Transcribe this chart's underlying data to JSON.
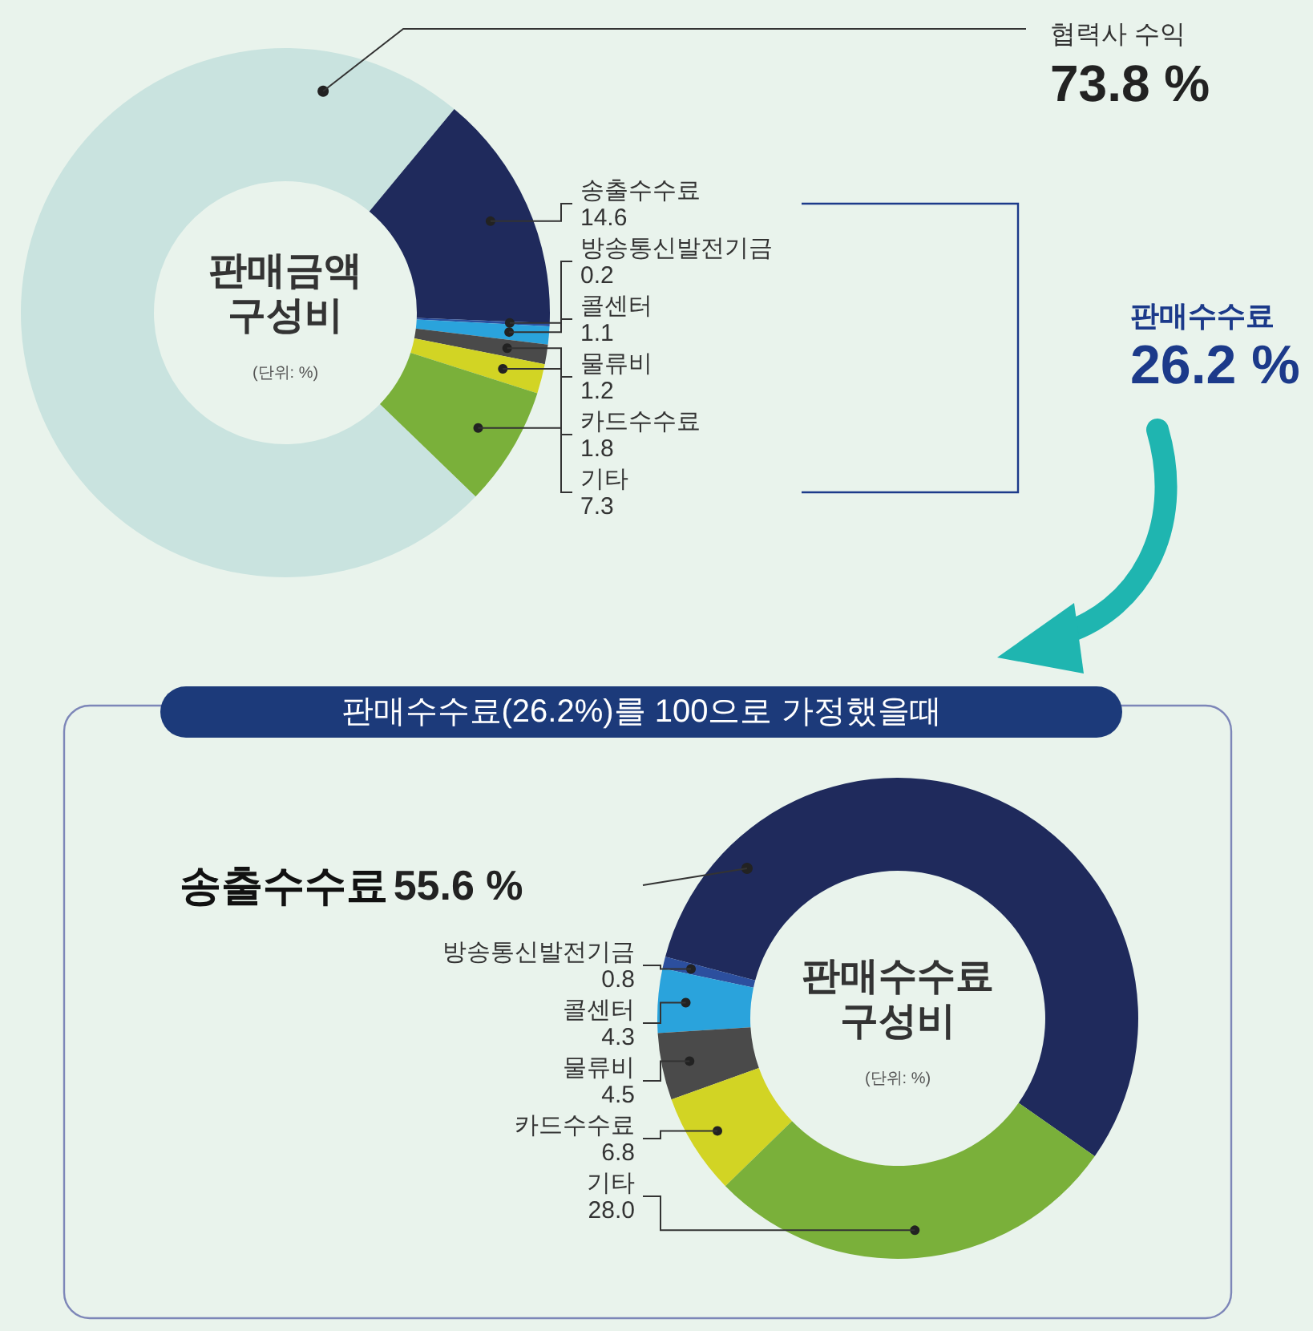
{
  "chart_data": [
    {
      "type": "donut",
      "title": "판매금액 구성비",
      "subtitle": "(단위: %)",
      "categories": [
        "협력사 수익",
        "송출수수료",
        "방송통신발전기금",
        "콜센터",
        "물류비",
        "카드수수료",
        "기타"
      ],
      "values": [
        73.8,
        14.6,
        0.2,
        1.1,
        1.2,
        1.8,
        7.3
      ],
      "colors": [
        "#c9e3df",
        "#1f2a5c",
        "#2c4f9e",
        "#2aa3dc",
        "#4a4a4a",
        "#d2d424",
        "#7ab03a"
      ],
      "value_labels": [
        "73.8 %",
        "14.6",
        "0.2",
        "1.1",
        "1.2",
        "1.8",
        "7.3"
      ],
      "annotations": [
        "판매수수료",
        "26.2 %"
      ]
    },
    {
      "type": "donut",
      "title": "판매수수료 구성비",
      "subtitle": "(단위: %)",
      "categories": [
        "송출수수료",
        "방송통신발전기금",
        "콜센터",
        "물류비",
        "카드수수료",
        "기타"
      ],
      "values": [
        55.6,
        0.8,
        4.3,
        4.5,
        6.8,
        28.0
      ],
      "colors": [
        "#1f2a5c",
        "#2c4f9e",
        "#2aa3dc",
        "#4a4a4a",
        "#d2d424",
        "#7ab03a"
      ],
      "value_labels": [
        "55.6 %",
        "0.8",
        "4.3",
        "4.5",
        "6.8",
        "28.0"
      ],
      "annotations": [
        "판매수수료(26.2%)를 100으로 가정했을때"
      ]
    }
  ]
}
